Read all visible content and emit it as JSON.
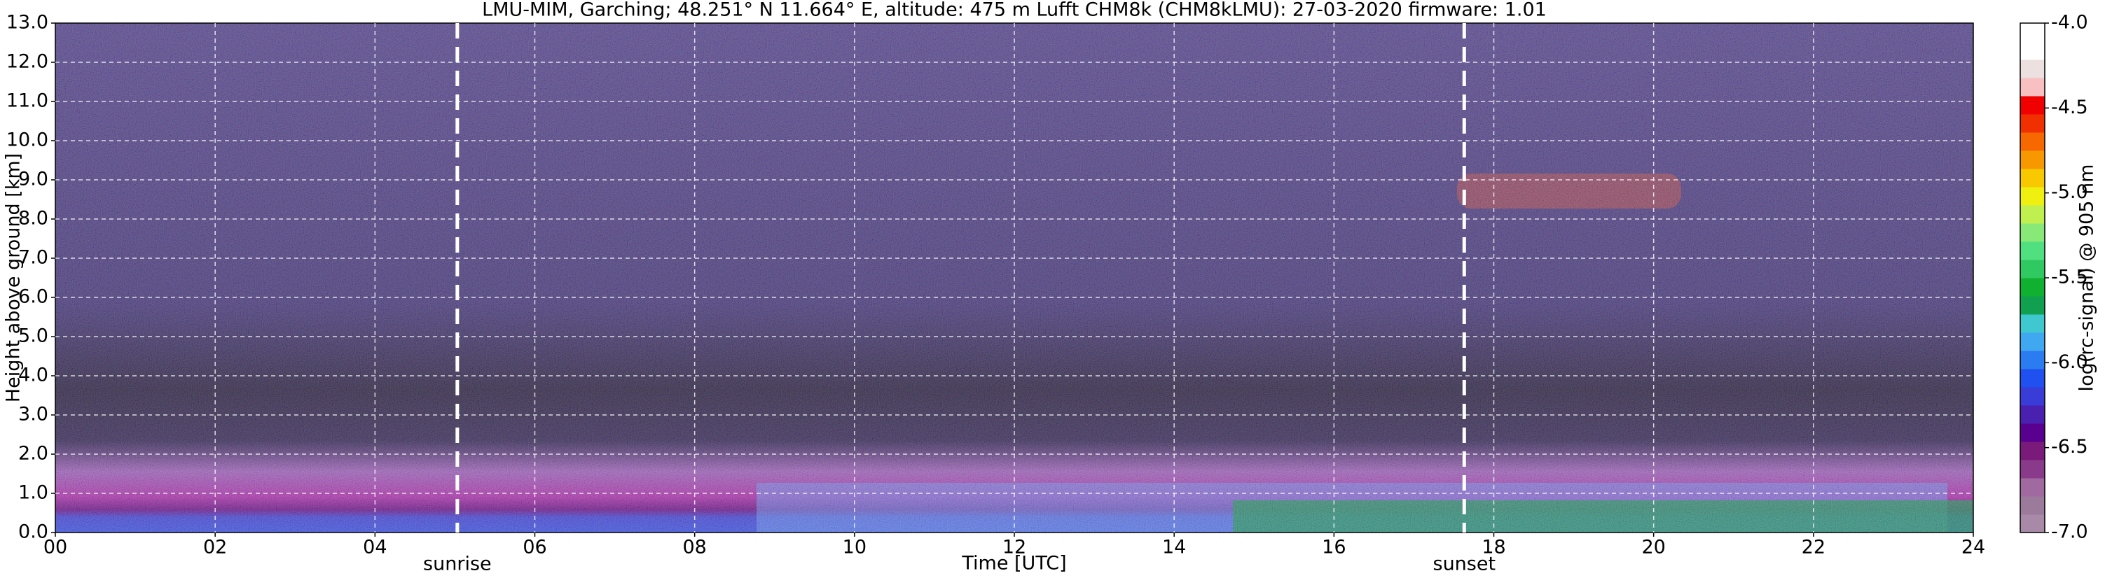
{
  "chart_data": {
    "type": "heatmap",
    "title": "LMU-MIM, Garching; 48.251° N 11.664° E, altitude: 475 m    Lufft CHM8k (CHM8kLMU): 27-03-2020    firmware: 1.01",
    "xlabel": "Time [UTC]",
    "ylabel": "Height above ground [km]",
    "xlim": [
      0,
      24
    ],
    "xticks": [
      {
        "value": 0,
        "label": "00"
      },
      {
        "value": 2,
        "label": "02"
      },
      {
        "value": 4,
        "label": "04"
      },
      {
        "value": 6,
        "label": "06"
      },
      {
        "value": 8,
        "label": "08"
      },
      10,
      12,
      14,
      16,
      18,
      20,
      22,
      24
    ],
    "ylim": [
      0,
      13
    ],
    "yticks": [
      {
        "value": 0,
        "label": "0.0"
      },
      {
        "value": 1,
        "label": "1.0"
      },
      {
        "value": 2,
        "label": "2.0"
      },
      {
        "value": 3,
        "label": "3.0"
      },
      {
        "value": 4,
        "label": "4.0"
      },
      {
        "value": 5,
        "label": "5.0"
      },
      {
        "value": 6,
        "label": "6.0"
      },
      {
        "value": 7,
        "label": "7.0"
      },
      {
        "value": 8,
        "label": "8.0"
      },
      {
        "value": 9,
        "label": "9.0"
      },
      {
        "value": 10,
        "label": "10.0"
      },
      {
        "value": 11,
        "label": "11.0"
      },
      {
        "value": 12,
        "label": "12.0"
      },
      {
        "value": 13,
        "label": "13.0"
      }
    ],
    "grid": true,
    "annotations": [
      {
        "text": "sunrise",
        "x": 5.03
      },
      {
        "text": "sunset",
        "x": 17.63
      }
    ],
    "colorbar": {
      "label": "log(rc-signal) @ 905 nm",
      "lim": [
        -7.0,
        -4.0
      ],
      "ticks": [
        {
          "value": -4.0,
          "label": "-4.0"
        },
        {
          "value": -4.5,
          "label": "-4.5"
        },
        {
          "value": -5.0,
          "label": "-5.0"
        },
        {
          "value": -5.5,
          "label": "-5.5"
        },
        {
          "value": -6.0,
          "label": "-6.0"
        },
        {
          "value": -6.5,
          "label": "-6.5"
        },
        {
          "value": -7.0,
          "label": "-7.0"
        }
      ],
      "colors": [
        "#a88aa8",
        "#9c7a9c",
        "#a06aa0",
        "#8a3a8a",
        "#7a1a7a",
        "#5a0090",
        "#4a20b0",
        "#3a3cd8",
        "#2050f0",
        "#2a7cf0",
        "#40a8f0",
        "#40c8d0",
        "#10a050",
        "#10b030",
        "#30c860",
        "#50e080",
        "#88e878",
        "#c0f050",
        "#f0f010",
        "#f8c800",
        "#f89800",
        "#f86800",
        "#f03000",
        "#f00000",
        "#f8c0c0",
        "#ece0e0",
        "#ffffff",
        "#ffffff"
      ]
    }
  }
}
